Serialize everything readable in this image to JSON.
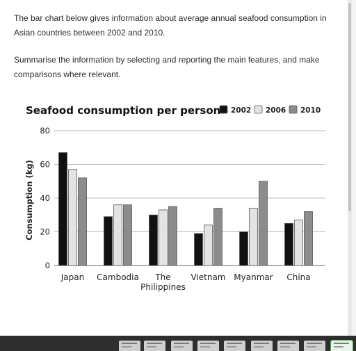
{
  "prompt": {
    "paragraph1": "The bar chart below gives information about average annual seafood consumption in Asian countries between 2002 and 2010.",
    "paragraph2": "Summarise the information by selecting and reporting the main features, and make comparisons where relevant."
  },
  "chart_data": {
    "type": "bar",
    "title": "Seafood consumption per person",
    "xlabel": "",
    "ylabel": "Consumption (kg)",
    "ylim": [
      0,
      80
    ],
    "yticks": [
      0,
      20,
      40,
      60,
      80
    ],
    "grid": true,
    "legend_position": "top-right",
    "categories": [
      "Japan",
      "Cambodia",
      "The Philippines",
      "Vietnam",
      "Myanmar",
      "China"
    ],
    "category_lines": [
      [
        "Japan"
      ],
      [
        "Cambodia"
      ],
      [
        "The",
        "Philippines"
      ],
      [
        "Vietnam"
      ],
      [
        "Myanmar"
      ],
      [
        "China"
      ]
    ],
    "series": [
      {
        "name": "2002",
        "color": "#111111",
        "values": [
          67,
          29,
          30,
          19,
          20,
          25
        ]
      },
      {
        "name": "2006",
        "color": "#e3e3e3",
        "values": [
          57,
          36,
          33,
          24,
          34,
          27
        ]
      },
      {
        "name": "2010",
        "color": "#8c8c8c",
        "values": [
          52,
          36,
          35,
          34,
          50,
          32
        ]
      }
    ]
  },
  "taskbar": {
    "thumbnails": [
      "window-thumbnail",
      "window-thumbnail",
      "window-thumbnail",
      "window-thumbnail",
      "window-thumbnail",
      "window-thumbnail",
      "window-thumbnail",
      "window-thumbnail",
      "window-thumbnail"
    ]
  }
}
